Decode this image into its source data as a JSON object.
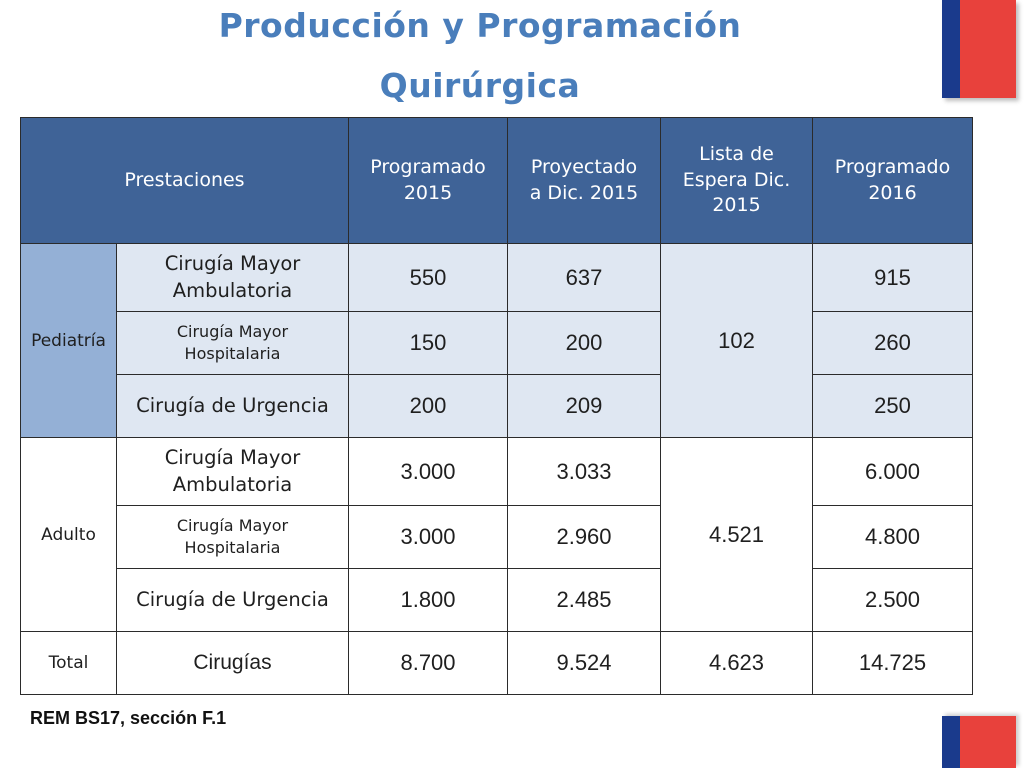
{
  "title": {
    "line1": "Producción y Programación",
    "line2": "Quirúrgica"
  },
  "table": {
    "headers": {
      "prestaciones": "Prestaciones",
      "prog2015_l1": "Programado",
      "prog2015_l2": "2015",
      "proy_l1": "Proyectado",
      "proy_l2": "a Dic. 2015",
      "lista_l1": "Lista de",
      "lista_l2": "Espera Dic.",
      "lista_l3": "2015",
      "prog2016_l1": "Programado",
      "prog2016_l2": "2016"
    },
    "pediatria": {
      "label": "Pediatría",
      "lista_espera": "102",
      "rows": [
        {
          "l1": "Cirugía Mayor",
          "l2": "Ambulatoria",
          "prog2015": "550",
          "proy": "637",
          "prog2016": "915"
        },
        {
          "l1": "Cirugía Mayor",
          "l2": "Hospitalaria",
          "prog2015": "150",
          "proy": "200",
          "prog2016": "260"
        },
        {
          "l1": "Cirugía de Urgencia",
          "l2": "",
          "prog2015": "200",
          "proy": "209",
          "prog2016": "250"
        }
      ]
    },
    "adulto": {
      "label": "Adulto",
      "lista_espera": "4.521",
      "rows": [
        {
          "l1": "Cirugía Mayor",
          "l2": "Ambulatoria",
          "prog2015": "3.000",
          "proy": "3.033",
          "prog2016": "6.000"
        },
        {
          "l1": "Cirugía Mayor",
          "l2": "Hospitalaria",
          "prog2015": "3.000",
          "proy": "2.960",
          "prog2016": "4.800"
        },
        {
          "l1": "Cirugía de Urgencia",
          "l2": "",
          "prog2015": "1.800",
          "proy": "2.485",
          "prog2016": "2.500"
        }
      ]
    },
    "total": {
      "label": "Total",
      "prestacion": "Cirugías",
      "prog2015": "8.700",
      "proy": "9.524",
      "lista_espera": "4.623",
      "prog2016": "14.725"
    }
  },
  "source": "REM BS17, sección F.1",
  "colors": {
    "title": "#4a7ebb",
    "header_bg": "#3f6397",
    "group_bg": "#94b0d6",
    "pediatria_row_bg": "#dfe7f2",
    "flag_blue": "#1a3a8c",
    "flag_red": "#e8413c"
  }
}
